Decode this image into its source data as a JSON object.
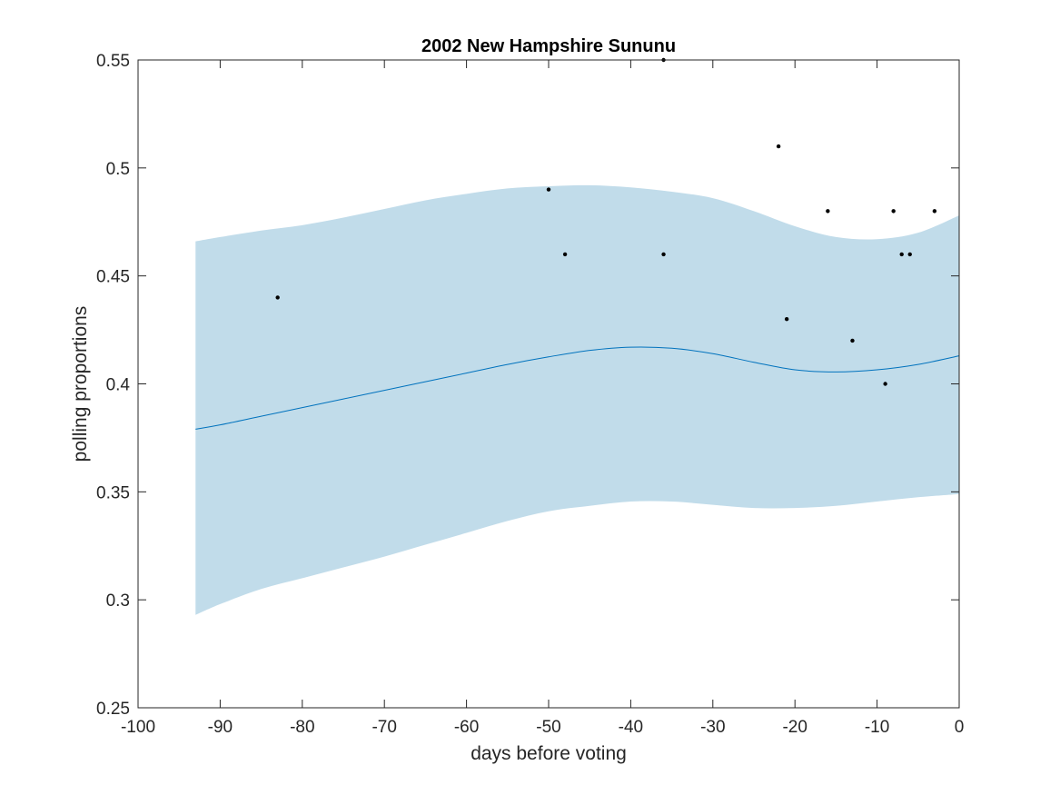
{
  "chart_data": {
    "type": "line",
    "title": "2002 New Hampshire Sununu",
    "xlabel": "days before voting",
    "ylabel": "polling proportions",
    "xlim": [
      -100,
      0
    ],
    "ylim": [
      0.25,
      0.55
    ],
    "xticks": [
      -100,
      -90,
      -80,
      -70,
      -60,
      -50,
      -40,
      -30,
      -20,
      -10,
      0
    ],
    "yticks": [
      0.25,
      0.3,
      0.35,
      0.4,
      0.45,
      0.5,
      0.55
    ],
    "xtick_labels": [
      "-100",
      "-90",
      "-80",
      "-70",
      "-60",
      "-50",
      "-40",
      "-30",
      "-20",
      "-10",
      "0"
    ],
    "ytick_labels": [
      "0.25",
      "0.3",
      "0.35",
      "0.4",
      "0.45",
      "0.5",
      "0.55"
    ],
    "grid": false,
    "colors": {
      "band": "#c1dcea",
      "line": "#0072bd",
      "points": "#000000",
      "axes": "#262626"
    },
    "band": {
      "x": [
        -93,
        -90,
        -85,
        -80,
        -75,
        -70,
        -65,
        -60,
        -55,
        -50,
        -45,
        -40,
        -35,
        -30,
        -25,
        -20,
        -15,
        -10,
        -5,
        0
      ],
      "upper": [
        0.466,
        0.468,
        0.471,
        0.4735,
        0.477,
        0.481,
        0.485,
        0.488,
        0.4905,
        0.4915,
        0.492,
        0.491,
        0.489,
        0.486,
        0.48,
        0.473,
        0.468,
        0.467,
        0.47,
        0.478
      ],
      "lower": [
        0.293,
        0.298,
        0.305,
        0.31,
        0.315,
        0.32,
        0.3255,
        0.331,
        0.3365,
        0.341,
        0.3435,
        0.3455,
        0.3455,
        0.344,
        0.3425,
        0.3425,
        0.3435,
        0.3455,
        0.3475,
        0.349
      ]
    },
    "series": [
      {
        "x": [
          -93,
          -90,
          -85,
          -80,
          -75,
          -70,
          -65,
          -60,
          -55,
          -50,
          -45,
          -40,
          -35,
          -30,
          -25,
          -20,
          -15,
          -10,
          -5,
          0
        ],
        "values": [
          0.379,
          0.381,
          0.385,
          0.389,
          0.393,
          0.397,
          0.401,
          0.405,
          0.409,
          0.4125,
          0.4155,
          0.417,
          0.4165,
          0.414,
          0.41,
          0.4065,
          0.4055,
          0.4065,
          0.409,
          0.413
        ]
      }
    ],
    "scatter": {
      "x": [
        -83,
        -50,
        -48,
        -36,
        -36,
        -22,
        -21,
        -16,
        -13,
        -9,
        -8,
        -7,
        -6,
        -3
      ],
      "y": [
        0.44,
        0.49,
        0.46,
        0.46,
        0.55,
        0.51,
        0.43,
        0.48,
        0.42,
        0.4,
        0.48,
        0.46,
        0.46,
        0.48
      ]
    }
  }
}
